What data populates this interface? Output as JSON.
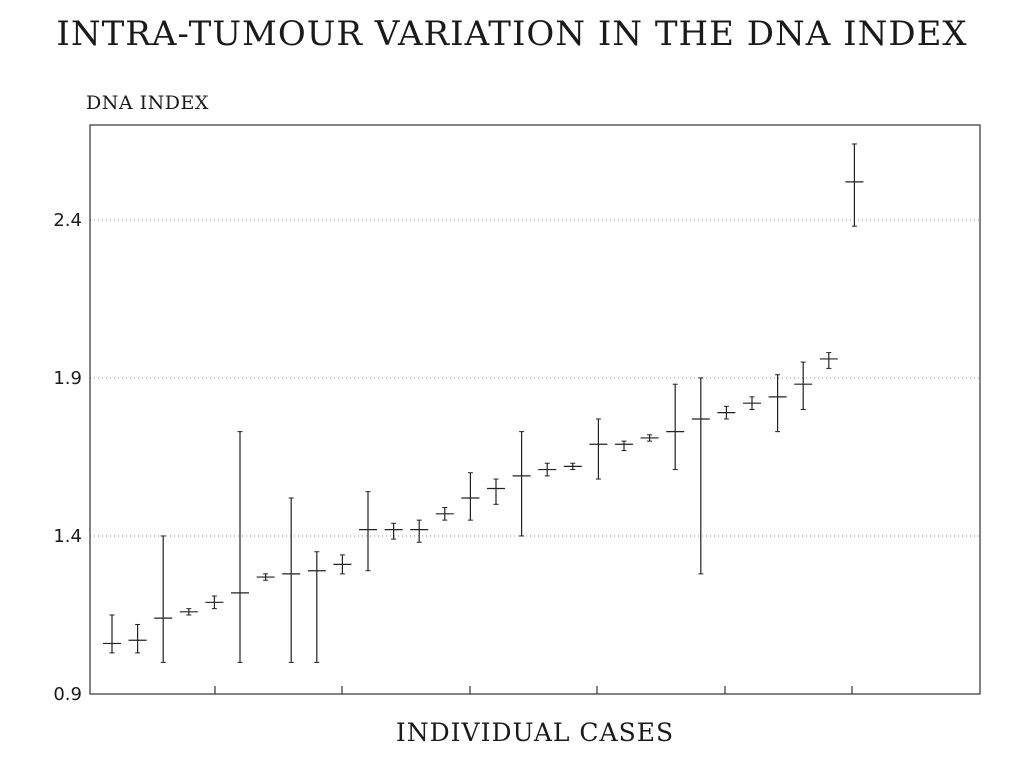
{
  "chart_data": {
    "type": "scatter",
    "title": "INTRA-TUMOUR VARIATION IN THE DNA INDEX",
    "ylabel": "DNA INDEX",
    "xlabel": "INDIVIDUAL CASES",
    "ylim": [
      0.9,
      2.7
    ],
    "yticks": [
      "0.9",
      "1.4",
      "1.9",
      "2.4"
    ],
    "grid": "horizontal dotted",
    "x": [
      1,
      2,
      3,
      4,
      5,
      6,
      7,
      8,
      9,
      10,
      11,
      12,
      13,
      14,
      15,
      16,
      17,
      18,
      19,
      20,
      21,
      22,
      23,
      24,
      25,
      26,
      27,
      28,
      29,
      30
    ],
    "series": [
      {
        "y": [
          1.06,
          1.07,
          1.14,
          1.16,
          1.19,
          1.22,
          1.27,
          1.28,
          1.29,
          1.31,
          1.42,
          1.42,
          1.42,
          1.47,
          1.52,
          1.55,
          1.59,
          1.61,
          1.62,
          1.69,
          1.69,
          1.71,
          1.73,
          1.77,
          1.79,
          1.82,
          1.84,
          1.88,
          1.96,
          2.52
        ],
        "ymin": [
          1.03,
          1.03,
          1.0,
          1.15,
          1.17,
          1.0,
          1.26,
          1.0,
          1.0,
          1.28,
          1.29,
          1.39,
          1.38,
          1.45,
          1.45,
          1.5,
          1.4,
          1.59,
          1.61,
          1.58,
          1.67,
          1.7,
          1.61,
          1.28,
          1.77,
          1.8,
          1.73,
          1.8,
          1.93,
          2.38
        ],
        "ymax": [
          1.15,
          1.12,
          1.4,
          1.17,
          1.21,
          1.73,
          1.28,
          1.52,
          1.35,
          1.34,
          1.54,
          1.44,
          1.45,
          1.49,
          1.6,
          1.58,
          1.73,
          1.63,
          1.63,
          1.77,
          1.7,
          1.72,
          1.88,
          1.9,
          1.81,
          1.84,
          1.91,
          1.95,
          1.98,
          2.64
        ]
      }
    ]
  }
}
